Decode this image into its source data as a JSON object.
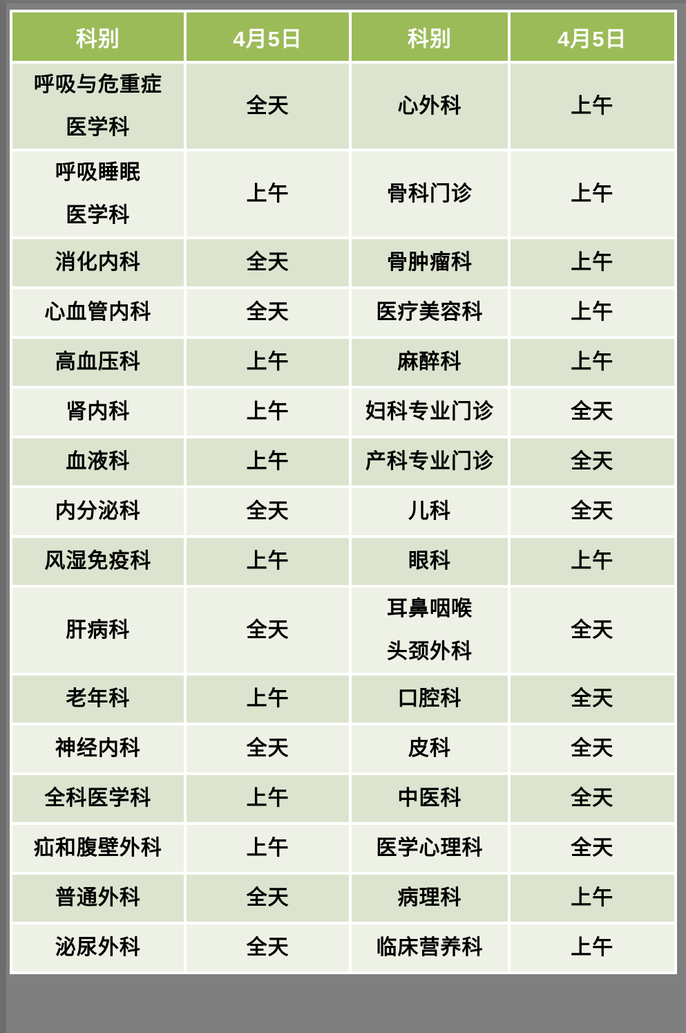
{
  "header": {
    "columns": [
      {
        "label": "科别"
      },
      {
        "label": "4月5日"
      },
      {
        "label": "科别"
      },
      {
        "label": "4月5日"
      }
    ]
  },
  "rows": [
    {
      "cells": [
        "呼吸与危重症\n医学科",
        "全天",
        "心外科",
        "上午"
      ]
    },
    {
      "cells": [
        "呼吸睡眠\n医学科",
        "上午",
        "骨科门诊",
        "上午"
      ]
    },
    {
      "cells": [
        "消化内科",
        "全天",
        "骨肿瘤科",
        "上午"
      ]
    },
    {
      "cells": [
        "心血管内科",
        "全天",
        "医疗美容科",
        "上午"
      ]
    },
    {
      "cells": [
        "高血压科",
        "上午",
        "麻醉科",
        "上午"
      ]
    },
    {
      "cells": [
        "肾内科",
        "上午",
        "妇科专业门诊",
        "全天"
      ]
    },
    {
      "cells": [
        "血液科",
        "上午",
        "产科专业门诊",
        "全天"
      ]
    },
    {
      "cells": [
        "内分泌科",
        "全天",
        "儿科",
        "全天"
      ]
    },
    {
      "cells": [
        "风湿免疫科",
        "上午",
        "眼科",
        "上午"
      ]
    },
    {
      "cells": [
        "肝病科",
        "全天",
        "耳鼻咽喉\n头颈外科",
        "全天"
      ]
    },
    {
      "cells": [
        "老年科",
        "上午",
        "口腔科",
        "全天"
      ]
    },
    {
      "cells": [
        "神经内科",
        "全天",
        "皮科",
        "全天"
      ]
    },
    {
      "cells": [
        "全科医学科",
        "上午",
        "中医科",
        "全天"
      ]
    },
    {
      "cells": [
        "疝和腹壁外科",
        "上午",
        "医学心理科",
        "全天"
      ]
    },
    {
      "cells": [
        "普通外科",
        "全天",
        "病理科",
        "上午"
      ]
    },
    {
      "cells": [
        "泌尿外科",
        "全天",
        "临床营养科",
        "上午"
      ]
    }
  ],
  "colors": {
    "header_bg": "#9bbb59",
    "header_text": "#ffffff",
    "band_dark": "#dce4cf",
    "band_light": "#eef2e6",
    "page_bg": "#7f7f7f",
    "cell_gap": "#ffffff"
  }
}
